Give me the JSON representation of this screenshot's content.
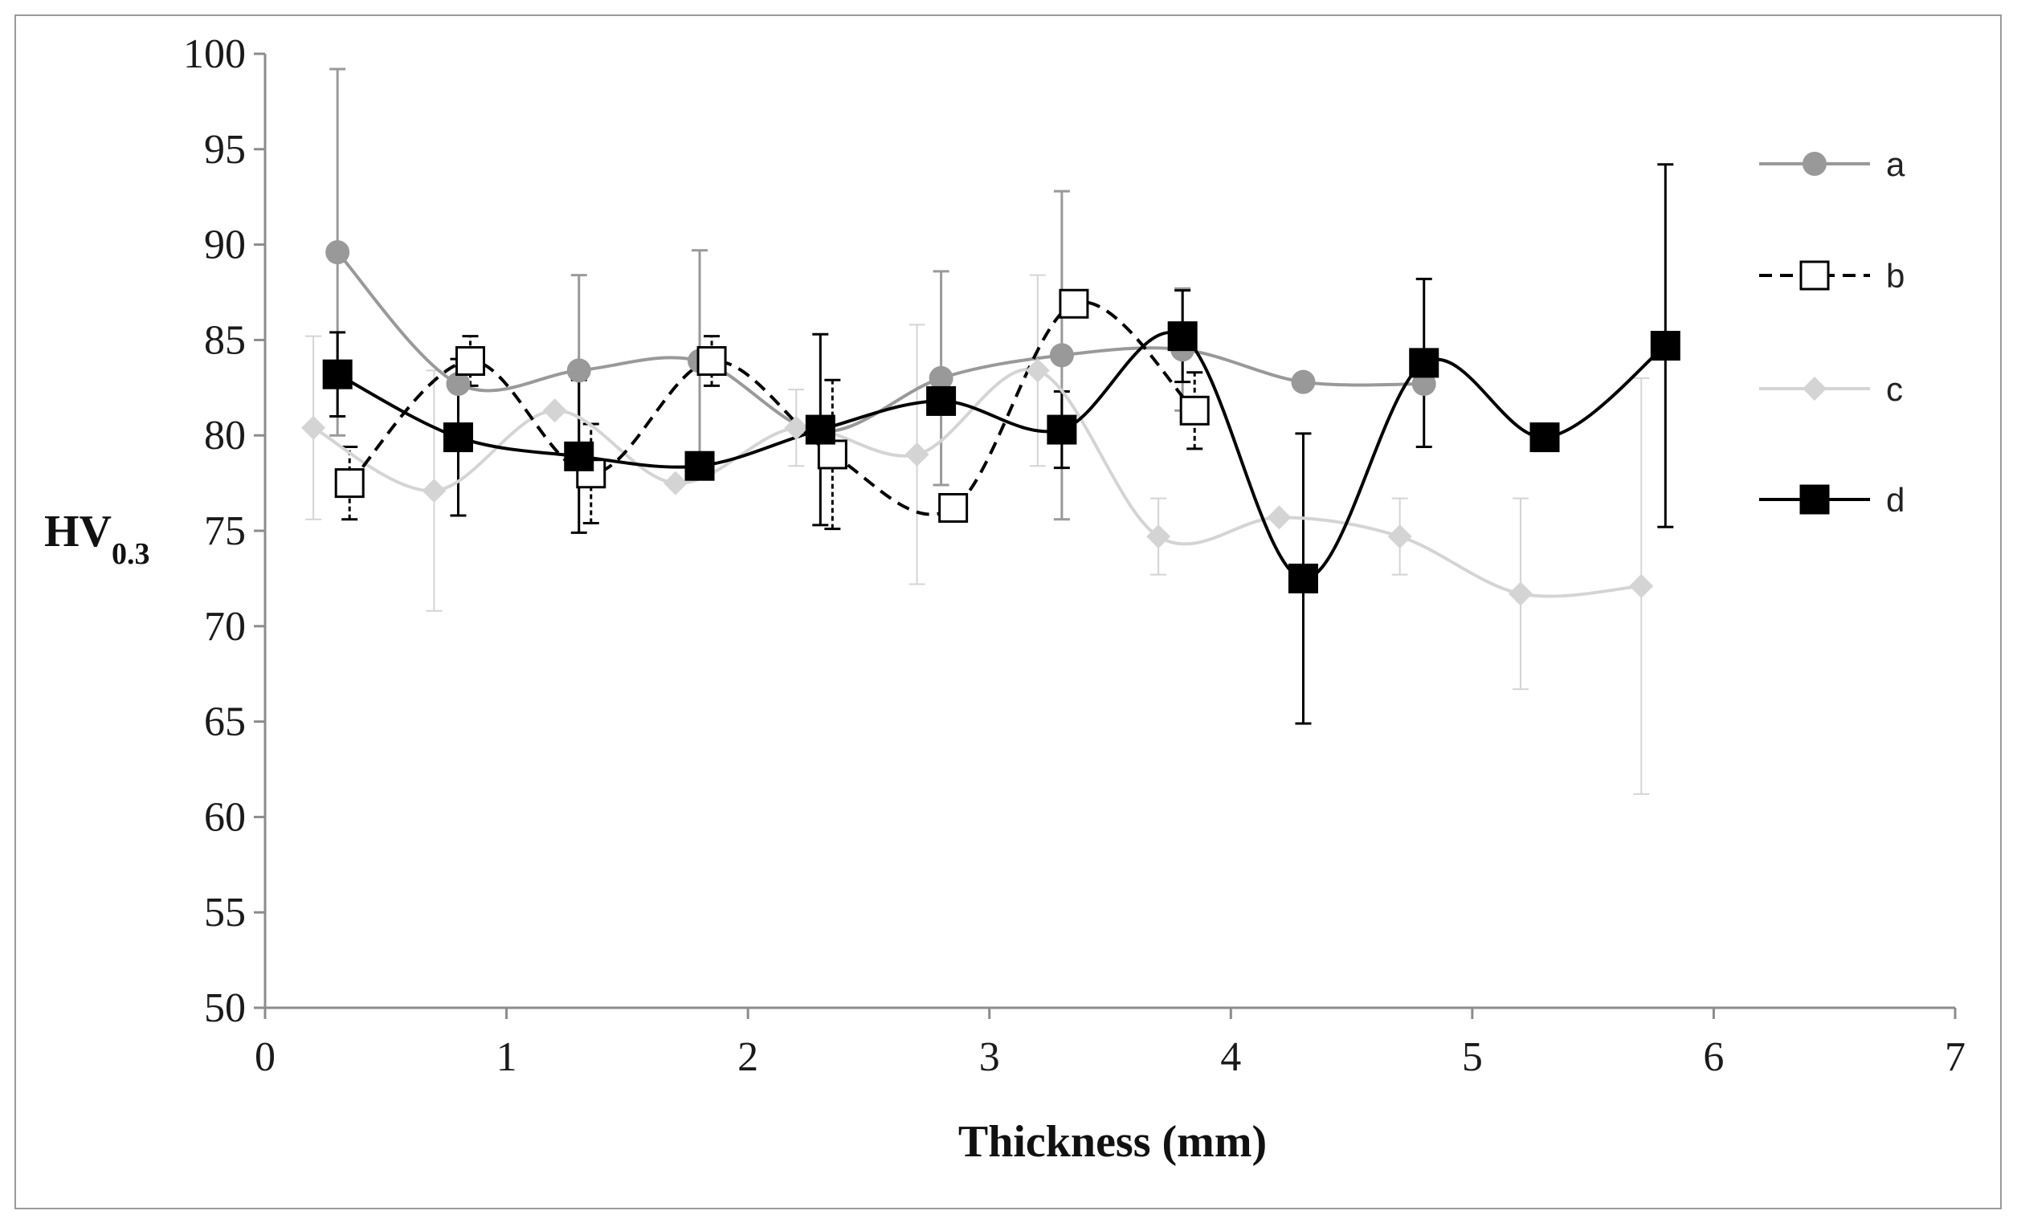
{
  "chart_data": {
    "type": "line",
    "title": "",
    "xlabel": "Thickness (mm)",
    "ylabel_main": "HV",
    "ylabel_sub": "0.3",
    "xlim": [
      0,
      7
    ],
    "ylim": [
      50,
      100
    ],
    "xticks": [
      0,
      1,
      2,
      3,
      4,
      5,
      6,
      7
    ],
    "yticks": [
      50,
      55,
      60,
      65,
      70,
      75,
      80,
      85,
      90,
      95,
      100
    ],
    "grid": false,
    "legend_position": "right",
    "series": [
      {
        "name": "a",
        "color": "#999999",
        "dash": "solid",
        "marker": "circle",
        "marker_fill": "#999999",
        "x": [
          0.3,
          0.8,
          1.3,
          1.8,
          2.3,
          2.8,
          3.3,
          3.8,
          4.3,
          4.8
        ],
        "y": [
          89.6,
          82.7,
          83.4,
          83.9,
          80.2,
          83.0,
          84.2,
          84.5,
          82.8,
          82.7
        ],
        "err": [
          9.6,
          0,
          5.0,
          5.8,
          0,
          5.6,
          8.6,
          3.2,
          0,
          0
        ]
      },
      {
        "name": "b",
        "color": "#000000",
        "dash": "dashed",
        "marker": "square",
        "marker_fill": "#ffffff",
        "x": [
          0.35,
          0.85,
          1.35,
          1.85,
          2.35,
          2.85,
          3.35,
          3.85
        ],
        "y": [
          77.5,
          83.9,
          78.0,
          83.9,
          79.0,
          76.2,
          86.9,
          81.3
        ],
        "err": [
          1.9,
          1.3,
          2.6,
          1.3,
          3.9,
          0,
          0,
          2.0
        ]
      },
      {
        "name": "c",
        "color": "#d4d4d4",
        "dash": "solid",
        "marker": "diamond",
        "marker_fill": "#d4d4d4",
        "x": [
          0.2,
          0.7,
          1.2,
          1.7,
          2.2,
          2.7,
          3.2,
          3.7,
          4.2,
          4.7,
          5.2,
          5.7
        ],
        "y": [
          80.4,
          77.1,
          81.3,
          77.5,
          80.4,
          79.0,
          83.4,
          74.7,
          75.7,
          74.7,
          71.7,
          72.1
        ],
        "err": [
          4.8,
          6.3,
          0,
          0,
          2.0,
          6.8,
          5.0,
          2.0,
          0,
          2.0,
          5.0,
          10.9
        ]
      },
      {
        "name": "d",
        "color": "#000000",
        "dash": "solid",
        "marker": "square",
        "marker_fill": "#000000",
        "x": [
          0.3,
          0.8,
          1.3,
          1.8,
          2.3,
          2.8,
          3.3,
          3.8,
          4.3,
          4.8,
          5.3,
          5.8
        ],
        "y": [
          83.2,
          79.9,
          78.9,
          78.4,
          80.3,
          81.8,
          80.3,
          85.2,
          72.5,
          83.8,
          79.9,
          84.7
        ],
        "err": [
          2.2,
          4.1,
          4.0,
          0,
          5.0,
          0,
          2.0,
          2.4,
          7.6,
          4.4,
          0,
          9.5
        ]
      }
    ]
  }
}
